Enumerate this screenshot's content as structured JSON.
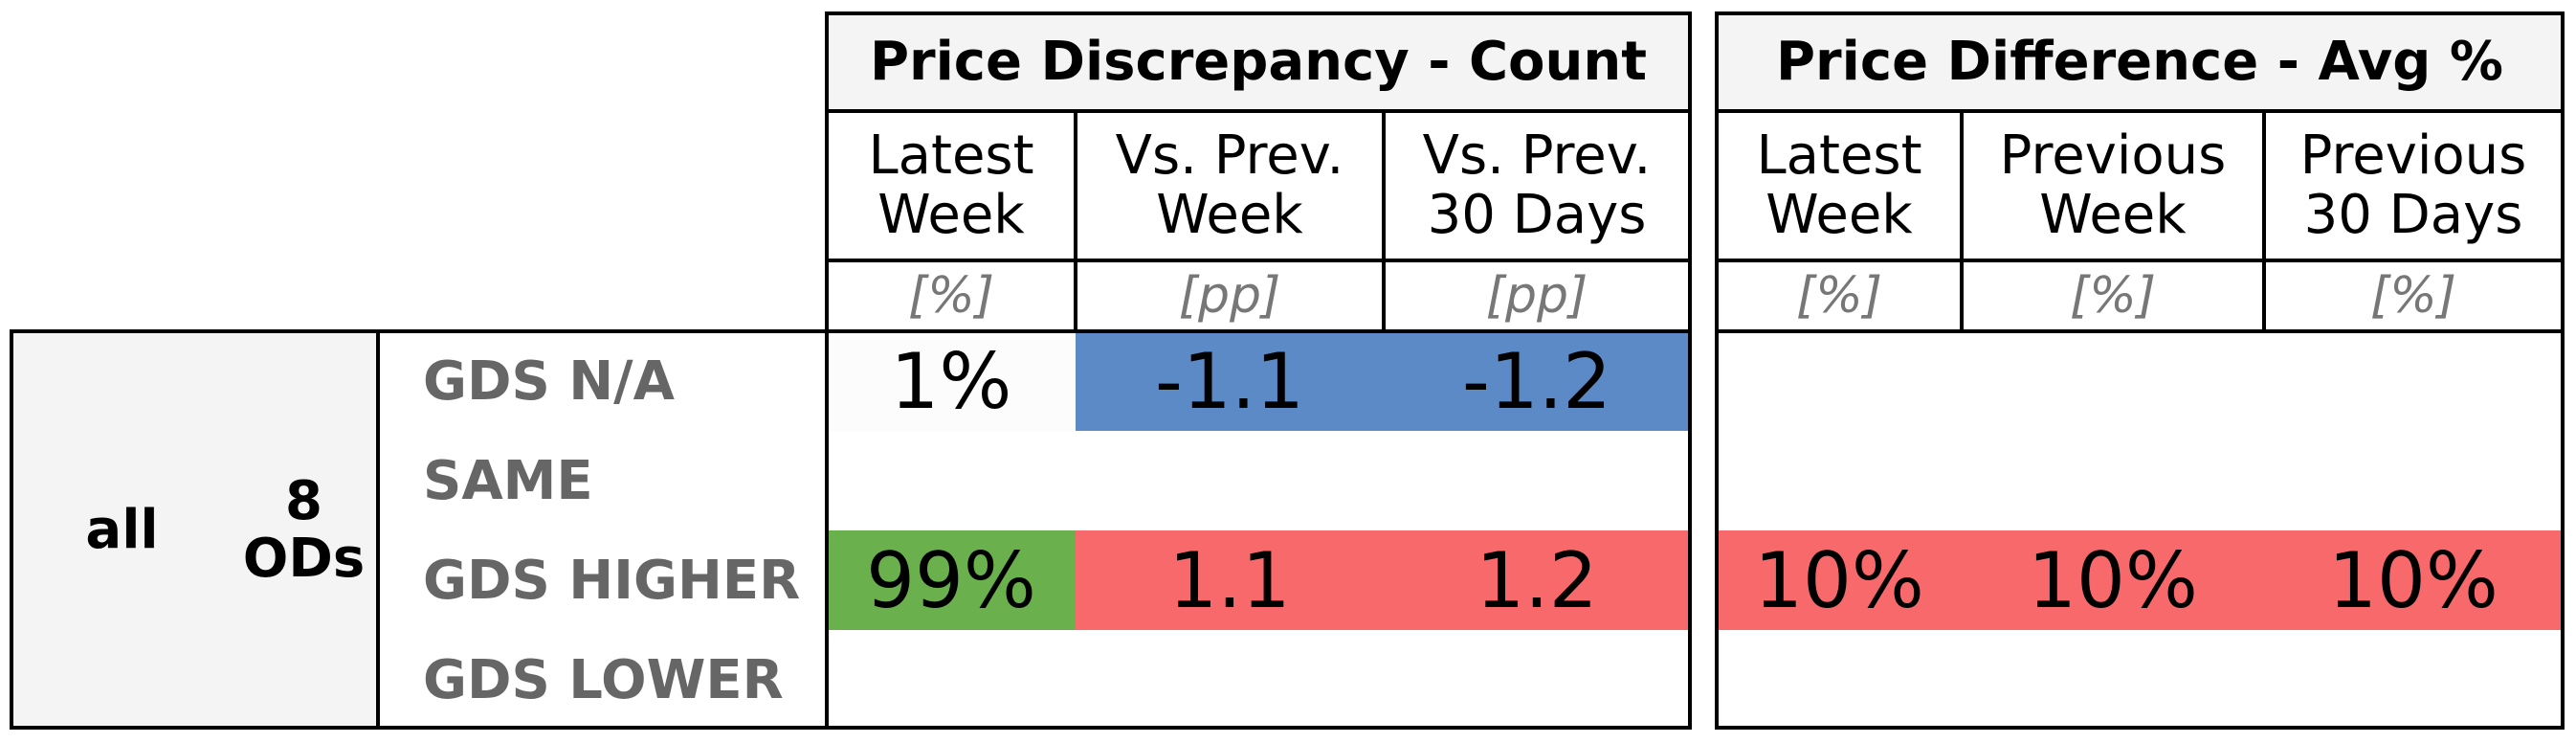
{
  "chart_data": {
    "type": "table",
    "sections": [
      {
        "title": "Price Discrepancy - Count",
        "columns": [
          {
            "label": "Latest\nWeek",
            "unit": "[%]"
          },
          {
            "label": "Vs. Prev.\nWeek",
            "unit": "[pp]"
          },
          {
            "label": "Vs. Prev.\n30 Days",
            "unit": "[pp]"
          }
        ]
      },
      {
        "title": "Price Difference - Avg %",
        "columns": [
          {
            "label": "Latest\nWeek",
            "unit": "[%]"
          },
          {
            "label": "Previous\nWeek",
            "unit": "[%]"
          },
          {
            "label": "Previous\n30 Days",
            "unit": "[%]"
          }
        ]
      }
    ],
    "group": {
      "label": "all",
      "count_label": "8\nODs"
    },
    "rows": [
      {
        "label": "GDS N/A",
        "values": [
          "1%",
          "-1.1",
          "-1.2",
          "",
          "",
          ""
        ]
      },
      {
        "label": "SAME",
        "values": [
          "",
          "",
          "",
          "",
          "",
          ""
        ]
      },
      {
        "label": "GDS HIGHER",
        "values": [
          "99%",
          "1.1",
          "1.2",
          "10%",
          "10%",
          "10%"
        ]
      },
      {
        "label": "GDS LOWER",
        "values": [
          "",
          "",
          "",
          "",
          "",
          ""
        ]
      }
    ],
    "cell_colors": [
      [
        "#fcfcfc",
        "#5b8ac6",
        "#5b8ac6",
        null,
        null,
        null
      ],
      [
        null,
        null,
        null,
        null,
        null,
        null
      ],
      [
        "#6ab04c",
        "#f8696b",
        "#f8696b",
        "#f8696b",
        "#f8696b",
        "#f8696b"
      ],
      [
        null,
        null,
        null,
        null,
        null,
        null
      ]
    ]
  }
}
